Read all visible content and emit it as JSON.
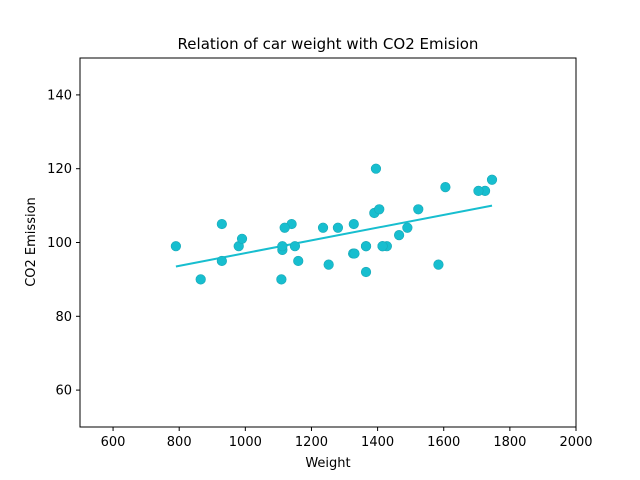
{
  "chart_data": {
    "type": "scatter",
    "title": "Relation of car weight with CO2 Emision",
    "xlabel": "Weight",
    "ylabel": "CO2 Emission",
    "xlim": [
      500,
      2000
    ],
    "ylim": [
      50,
      150
    ],
    "xticks": [
      600,
      800,
      1000,
      1200,
      1400,
      1600,
      1800,
      2000
    ],
    "yticks": [
      60,
      80,
      100,
      120,
      140
    ],
    "grid": false,
    "colors": {
      "points": "#17becf",
      "line": "#17becf",
      "axes": "#000000"
    },
    "series": [
      {
        "type": "scatter",
        "x": [
          790,
          1160,
          929,
          865,
          1140,
          929,
          1109,
          1365,
          1112,
          1150,
          980,
          990,
          1112,
          1252,
          1326,
          1330,
          1365,
          1280,
          1119,
          1328,
          1584,
          1428,
          1365,
          1415,
          1415,
          1465,
          1490,
          1725,
          1523,
          1705,
          1605,
          1746,
          1235,
          1390,
          1405
        ],
        "y": [
          99,
          95,
          95,
          90,
          105,
          105,
          90,
          92,
          98,
          99,
          99,
          101,
          99,
          94,
          97,
          97,
          99,
          104,
          104,
          105,
          94,
          99,
          99,
          99,
          99,
          102,
          104,
          114,
          109,
          114,
          115,
          117,
          104,
          108,
          109
        ]
      },
      {
        "type": "line",
        "x": [
          790,
          1746
        ],
        "y": [
          93.5,
          110
        ]
      }
    ],
    "extra_points": {
      "x": [
        1395
      ],
      "y": [
        120
      ]
    }
  }
}
